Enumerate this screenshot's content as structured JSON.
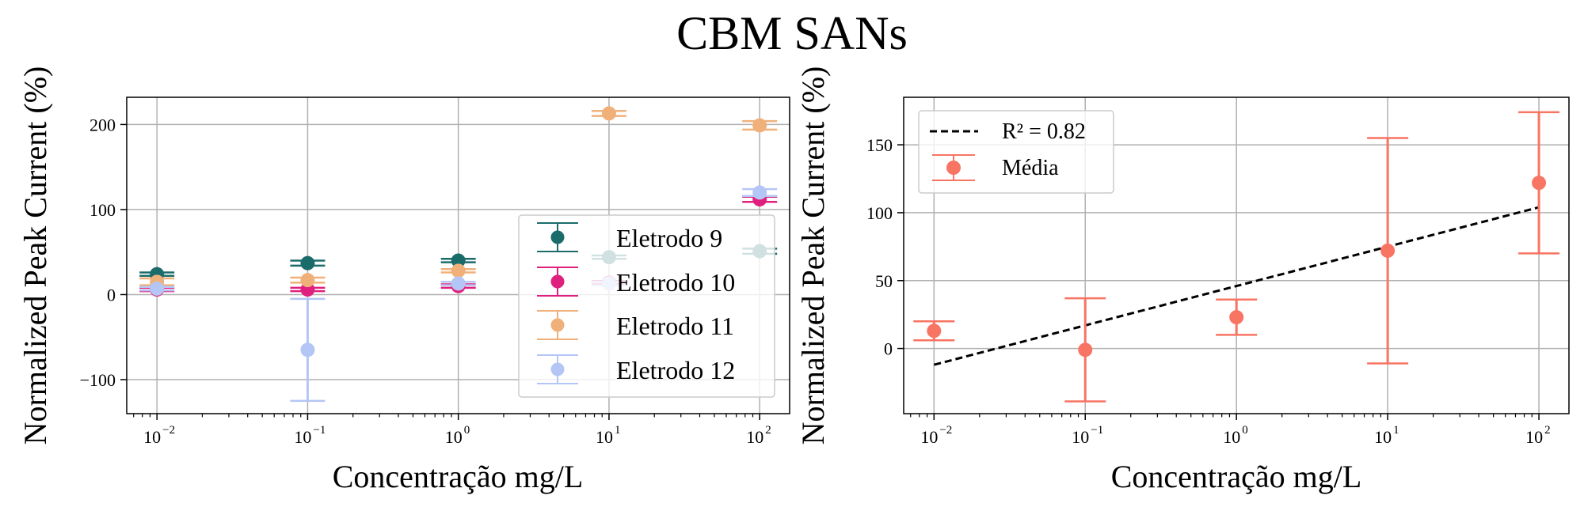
{
  "figure": {
    "title": "CBM SANs"
  },
  "chart_data": [
    {
      "type": "scatter",
      "xscale": "log",
      "xlabel": "Concentração mg/L",
      "ylabel": "Normalized Peak Current (%)",
      "xlim": [
        0.0063,
        158
      ],
      "ylim": [
        -140,
        232
      ],
      "x_tick_labels": [
        "10",
        "10",
        "10",
        "10",
        "10"
      ],
      "x_tick_exponents": [
        "−2",
        "−1",
        "0",
        "1",
        "2"
      ],
      "x_ticks": [
        0.01,
        0.1,
        1,
        10,
        100
      ],
      "y_ticks": [
        -100,
        0,
        100,
        200
      ],
      "y_tick_labels": [
        "−100",
        "0",
        "100",
        "200"
      ],
      "grid": true,
      "legend_position": "lower-right",
      "series": [
        {
          "name": "Eletrodo 9",
          "color": "#1b6b6b",
          "x": [
            0.01,
            0.1,
            1,
            10,
            100
          ],
          "y": [
            24,
            37,
            40,
            44,
            51
          ],
          "err": [
            2,
            3,
            2,
            2,
            3
          ]
        },
        {
          "name": "Eletrodo 10",
          "color": "#e0207e",
          "x": [
            0.01,
            0.1,
            1,
            10,
            100
          ],
          "y": [
            6,
            6,
            10,
            14,
            112
          ],
          "err": [
            2,
            2,
            2,
            2,
            3
          ]
        },
        {
          "name": "Eletrodo 11",
          "color": "#f0b07a",
          "x": [
            0.01,
            0.1,
            1,
            10,
            100
          ],
          "y": [
            15,
            17,
            28,
            213,
            199
          ],
          "err": [
            4,
            3,
            2,
            3,
            5
          ]
        },
        {
          "name": "Eletrodo 12",
          "color": "#b4c6f5",
          "x": [
            0.01,
            0.1,
            1,
            10,
            100
          ],
          "y": [
            7,
            -65,
            13,
            13,
            120
          ],
          "err": [
            2,
            60,
            2,
            2,
            4
          ]
        }
      ]
    },
    {
      "type": "scatter",
      "xscale": "log",
      "xlabel": "Concentração mg/L",
      "ylabel": "Normalized Peak Current (%)",
      "xlim": [
        0.0063,
        158
      ],
      "ylim": [
        -48,
        185
      ],
      "x_tick_labels": [
        "10",
        "10",
        "10",
        "10",
        "10"
      ],
      "x_tick_exponents": [
        "−2",
        "−1",
        "0",
        "1",
        "2"
      ],
      "x_ticks": [
        0.01,
        0.1,
        1,
        10,
        100
      ],
      "y_ticks": [
        0,
        50,
        100,
        150
      ],
      "y_tick_labels": [
        "0",
        "50",
        "100",
        "150"
      ],
      "grid": true,
      "legend_position": "upper-left",
      "series": [
        {
          "name": "Média",
          "color": "#f87463",
          "x": [
            0.01,
            0.1,
            1,
            10,
            100
          ],
          "y": [
            13,
            -1,
            23,
            72,
            122
          ],
          "err": [
            7,
            38,
            13,
            83,
            52
          ]
        }
      ],
      "fit": {
        "name": "R² = 0.82",
        "style": "dashed",
        "color": "#000000",
        "x": [
          0.01,
          100
        ],
        "y": [
          -12,
          104
        ]
      }
    }
  ]
}
